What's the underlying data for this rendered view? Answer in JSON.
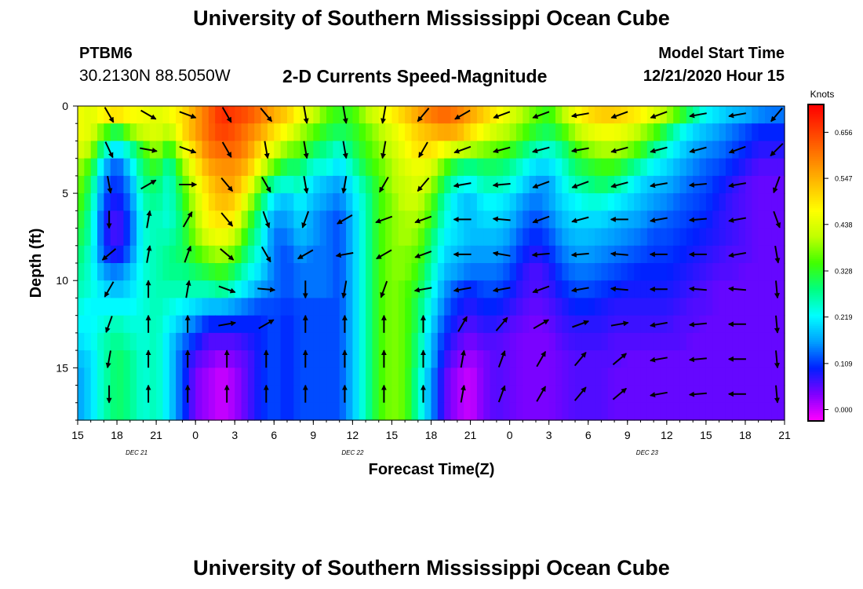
{
  "header": {
    "title_top": "University of Southern Mississippi Ocean Cube",
    "title_bottom": "University of Southern Mississippi Ocean Cube",
    "station_id": "PTBM6",
    "station_coords": "30.2130N 88.5050W",
    "model_label": "Model Start Time",
    "model_time": "12/21/2020 Hour 15"
  },
  "chart_data": {
    "type": "heatmap",
    "title": "2-D Currents Speed-Magnitude",
    "xlabel": "Forecast Time(Z)",
    "ylabel": "Depth (ft)",
    "x_range_hours": [
      0,
      54
    ],
    "y_range_ft": [
      0,
      18
    ],
    "x_ticks": [
      "15",
      "18",
      "21",
      "0",
      "3",
      "6",
      "9",
      "12",
      "15",
      "18",
      "21",
      "0",
      "3",
      "6",
      "9",
      "12",
      "15",
      "18",
      "21"
    ],
    "y_ticks": [
      "0",
      "5",
      "10",
      "15"
    ],
    "y_tick_values": [
      0,
      5,
      10,
      15
    ],
    "date_labels": [
      {
        "text": "DEC 21",
        "hour": 4.5
      },
      {
        "text": "DEC 22",
        "hour": 21
      },
      {
        "text": "DEC 23",
        "hour": 43.5
      }
    ],
    "colorbar": {
      "title": "Knots",
      "ticks": [
        "0.656",
        "0.547",
        "0.438",
        "0.328",
        "0.219",
        "0.109",
        "0.000"
      ],
      "tick_values": [
        0.656,
        0.547,
        0.438,
        0.328,
        0.219,
        0.109,
        0.0
      ],
      "range": [
        -0.025,
        0.72
      ],
      "colors": [
        "#ff00ff",
        "#8000ff",
        "#0020ff",
        "#00a0ff",
        "#00ffff",
        "#00ff80",
        "#40ff00",
        "#c0ff00",
        "#ffff00",
        "#ffc000",
        "#ff8000",
        "#ff4000",
        "#ff0000"
      ]
    },
    "depth_rows": [
      0.5,
      1.5,
      2.5,
      3.5,
      4.5,
      5.5,
      6.5,
      7.5,
      8.5,
      9.5,
      10.5,
      11.5,
      12.5,
      13.5,
      14.5,
      15.5,
      16.5,
      17.5
    ],
    "anchor_hours": [
      0,
      1,
      2,
      3,
      4,
      5,
      6,
      7,
      8,
      9,
      10,
      11,
      12,
      13,
      14,
      15,
      16,
      17,
      18,
      19,
      20,
      21,
      22,
      23,
      24,
      25,
      26,
      27,
      28,
      29,
      30,
      31,
      32,
      33,
      34,
      35,
      36,
      37,
      38,
      39,
      40,
      41,
      42,
      43,
      44,
      45,
      46,
      47,
      48,
      49,
      50,
      51,
      52,
      53,
      54
    ],
    "speed": [
      [
        0.46,
        0.44,
        0.48,
        0.5,
        0.47,
        0.46,
        0.44,
        0.46,
        0.5,
        0.56,
        0.62,
        0.68,
        0.66,
        0.64,
        0.6,
        0.55,
        0.52,
        0.46,
        0.42,
        0.36,
        0.33,
        0.34,
        0.4,
        0.44,
        0.48,
        0.52,
        0.56,
        0.6,
        0.62,
        0.6,
        0.56,
        0.52,
        0.48,
        0.44,
        0.4,
        0.36,
        0.33,
        0.4,
        0.46,
        0.5,
        0.52,
        0.52,
        0.5,
        0.48,
        0.44,
        0.4,
        0.34,
        0.28,
        0.22,
        0.2,
        0.18,
        0.17,
        0.15,
        0.14,
        0.14
      ],
      [
        0.46,
        0.44,
        0.36,
        0.3,
        0.38,
        0.42,
        0.44,
        0.4,
        0.5,
        0.56,
        0.62,
        0.66,
        0.64,
        0.6,
        0.56,
        0.5,
        0.46,
        0.4,
        0.36,
        0.32,
        0.3,
        0.32,
        0.36,
        0.4,
        0.44,
        0.48,
        0.52,
        0.54,
        0.56,
        0.55,
        0.5,
        0.46,
        0.42,
        0.4,
        0.36,
        0.32,
        0.3,
        0.34,
        0.4,
        0.44,
        0.46,
        0.46,
        0.44,
        0.4,
        0.36,
        0.3,
        0.24,
        0.2,
        0.18,
        0.16,
        0.14,
        0.12,
        0.1,
        0.1,
        0.1
      ],
      [
        0.44,
        0.4,
        0.26,
        0.2,
        0.26,
        0.34,
        0.4,
        0.32,
        0.44,
        0.52,
        0.6,
        0.62,
        0.62,
        0.58,
        0.5,
        0.44,
        0.38,
        0.36,
        0.3,
        0.28,
        0.24,
        0.3,
        0.34,
        0.38,
        0.42,
        0.46,
        0.5,
        0.5,
        0.46,
        0.42,
        0.4,
        0.38,
        0.36,
        0.34,
        0.3,
        0.26,
        0.24,
        0.28,
        0.34,
        0.38,
        0.4,
        0.4,
        0.38,
        0.34,
        0.28,
        0.24,
        0.2,
        0.17,
        0.15,
        0.14,
        0.12,
        0.1,
        0.08,
        0.08,
        0.08
      ],
      [
        0.4,
        0.34,
        0.18,
        0.12,
        0.2,
        0.3,
        0.34,
        0.26,
        0.38,
        0.48,
        0.56,
        0.58,
        0.58,
        0.54,
        0.44,
        0.36,
        0.3,
        0.3,
        0.24,
        0.24,
        0.2,
        0.26,
        0.32,
        0.36,
        0.4,
        0.44,
        0.46,
        0.44,
        0.36,
        0.3,
        0.28,
        0.3,
        0.3,
        0.28,
        0.24,
        0.2,
        0.2,
        0.24,
        0.3,
        0.32,
        0.34,
        0.34,
        0.3,
        0.26,
        0.22,
        0.2,
        0.17,
        0.15,
        0.13,
        0.12,
        0.1,
        0.08,
        0.06,
        0.06,
        0.06
      ],
      [
        0.38,
        0.3,
        0.14,
        0.1,
        0.16,
        0.28,
        0.3,
        0.24,
        0.34,
        0.44,
        0.52,
        0.56,
        0.56,
        0.48,
        0.36,
        0.26,
        0.24,
        0.26,
        0.2,
        0.18,
        0.16,
        0.22,
        0.28,
        0.34,
        0.4,
        0.42,
        0.44,
        0.4,
        0.3,
        0.24,
        0.22,
        0.26,
        0.26,
        0.24,
        0.2,
        0.16,
        0.16,
        0.22,
        0.26,
        0.28,
        0.3,
        0.28,
        0.24,
        0.2,
        0.18,
        0.17,
        0.15,
        0.13,
        0.12,
        0.1,
        0.08,
        0.06,
        0.05,
        0.05,
        0.05
      ],
      [
        0.36,
        0.28,
        0.12,
        0.08,
        0.14,
        0.26,
        0.28,
        0.24,
        0.32,
        0.42,
        0.5,
        0.54,
        0.52,
        0.42,
        0.3,
        0.2,
        0.18,
        0.22,
        0.18,
        0.16,
        0.14,
        0.2,
        0.26,
        0.34,
        0.38,
        0.42,
        0.42,
        0.36,
        0.26,
        0.2,
        0.18,
        0.22,
        0.22,
        0.2,
        0.16,
        0.14,
        0.16,
        0.2,
        0.22,
        0.24,
        0.24,
        0.22,
        0.2,
        0.18,
        0.16,
        0.15,
        0.13,
        0.12,
        0.11,
        0.09,
        0.07,
        0.06,
        0.05,
        0.05,
        0.05
      ],
      [
        0.34,
        0.26,
        0.1,
        0.06,
        0.12,
        0.24,
        0.26,
        0.24,
        0.3,
        0.4,
        0.48,
        0.5,
        0.48,
        0.36,
        0.26,
        0.16,
        0.16,
        0.2,
        0.16,
        0.14,
        0.12,
        0.18,
        0.26,
        0.34,
        0.38,
        0.4,
        0.4,
        0.34,
        0.24,
        0.2,
        0.18,
        0.2,
        0.2,
        0.18,
        0.14,
        0.12,
        0.14,
        0.18,
        0.2,
        0.2,
        0.2,
        0.18,
        0.17,
        0.16,
        0.14,
        0.13,
        0.12,
        0.11,
        0.1,
        0.08,
        0.07,
        0.06,
        0.05,
        0.05,
        0.05
      ],
      [
        0.32,
        0.26,
        0.1,
        0.06,
        0.12,
        0.24,
        0.26,
        0.26,
        0.3,
        0.38,
        0.44,
        0.46,
        0.42,
        0.32,
        0.24,
        0.14,
        0.14,
        0.18,
        0.16,
        0.14,
        0.12,
        0.18,
        0.26,
        0.34,
        0.38,
        0.4,
        0.38,
        0.3,
        0.22,
        0.2,
        0.18,
        0.18,
        0.18,
        0.16,
        0.12,
        0.1,
        0.12,
        0.16,
        0.18,
        0.18,
        0.17,
        0.16,
        0.15,
        0.14,
        0.12,
        0.12,
        0.11,
        0.1,
        0.09,
        0.08,
        0.07,
        0.06,
        0.05,
        0.05,
        0.05
      ],
      [
        0.3,
        0.24,
        0.12,
        0.08,
        0.14,
        0.24,
        0.26,
        0.28,
        0.3,
        0.34,
        0.38,
        0.4,
        0.36,
        0.28,
        0.22,
        0.14,
        0.12,
        0.16,
        0.14,
        0.14,
        0.12,
        0.18,
        0.26,
        0.34,
        0.38,
        0.38,
        0.36,
        0.28,
        0.2,
        0.18,
        0.16,
        0.16,
        0.16,
        0.14,
        0.1,
        0.08,
        0.1,
        0.14,
        0.16,
        0.16,
        0.15,
        0.14,
        0.13,
        0.12,
        0.11,
        0.11,
        0.1,
        0.09,
        0.08,
        0.07,
        0.06,
        0.06,
        0.05,
        0.05,
        0.05
      ],
      [
        0.28,
        0.24,
        0.16,
        0.14,
        0.18,
        0.24,
        0.26,
        0.28,
        0.28,
        0.3,
        0.32,
        0.34,
        0.3,
        0.24,
        0.2,
        0.14,
        0.12,
        0.14,
        0.14,
        0.14,
        0.12,
        0.18,
        0.26,
        0.34,
        0.38,
        0.38,
        0.34,
        0.26,
        0.18,
        0.16,
        0.14,
        0.14,
        0.14,
        0.12,
        0.08,
        0.06,
        0.08,
        0.12,
        0.14,
        0.14,
        0.13,
        0.12,
        0.11,
        0.1,
        0.1,
        0.1,
        0.09,
        0.08,
        0.07,
        0.06,
        0.06,
        0.05,
        0.05,
        0.05,
        0.05
      ],
      [
        0.26,
        0.24,
        0.2,
        0.18,
        0.2,
        0.24,
        0.26,
        0.26,
        0.26,
        0.26,
        0.26,
        0.28,
        0.24,
        0.2,
        0.16,
        0.14,
        0.12,
        0.14,
        0.14,
        0.14,
        0.12,
        0.18,
        0.26,
        0.34,
        0.38,
        0.36,
        0.32,
        0.24,
        0.16,
        0.12,
        0.1,
        0.12,
        0.12,
        0.1,
        0.07,
        0.06,
        0.07,
        0.1,
        0.12,
        0.12,
        0.11,
        0.1,
        0.09,
        0.09,
        0.09,
        0.09,
        0.08,
        0.07,
        0.06,
        0.05,
        0.05,
        0.05,
        0.05,
        0.05,
        0.05
      ],
      [
        0.24,
        0.22,
        0.22,
        0.22,
        0.22,
        0.24,
        0.26,
        0.24,
        0.22,
        0.2,
        0.18,
        0.18,
        0.16,
        0.14,
        0.12,
        0.12,
        0.11,
        0.12,
        0.12,
        0.12,
        0.12,
        0.18,
        0.26,
        0.34,
        0.38,
        0.36,
        0.3,
        0.22,
        0.14,
        0.1,
        0.08,
        0.1,
        0.1,
        0.08,
        0.06,
        0.05,
        0.06,
        0.08,
        0.1,
        0.1,
        0.09,
        0.08,
        0.08,
        0.08,
        0.08,
        0.08,
        0.07,
        0.06,
        0.06,
        0.05,
        0.05,
        0.05,
        0.05,
        0.05,
        0.05
      ],
      [
        0.22,
        0.22,
        0.24,
        0.26,
        0.24,
        0.24,
        0.26,
        0.22,
        0.18,
        0.14,
        0.1,
        0.1,
        0.1,
        0.1,
        0.1,
        0.12,
        0.1,
        0.12,
        0.12,
        0.12,
        0.12,
        0.18,
        0.26,
        0.34,
        0.38,
        0.36,
        0.3,
        0.2,
        0.12,
        0.08,
        0.06,
        0.08,
        0.08,
        0.06,
        0.05,
        0.04,
        0.05,
        0.07,
        0.08,
        0.08,
        0.08,
        0.07,
        0.07,
        0.07,
        0.07,
        0.07,
        0.06,
        0.06,
        0.05,
        0.05,
        0.05,
        0.05,
        0.05,
        0.05,
        0.05
      ],
      [
        0.2,
        0.22,
        0.26,
        0.28,
        0.26,
        0.24,
        0.26,
        0.2,
        0.14,
        0.1,
        0.06,
        0.06,
        0.06,
        0.08,
        0.1,
        0.12,
        0.1,
        0.12,
        0.12,
        0.12,
        0.12,
        0.18,
        0.26,
        0.34,
        0.38,
        0.36,
        0.28,
        0.18,
        0.1,
        0.06,
        0.04,
        0.06,
        0.06,
        0.05,
        0.04,
        0.04,
        0.04,
        0.06,
        0.07,
        0.07,
        0.07,
        0.06,
        0.06,
        0.06,
        0.06,
        0.06,
        0.06,
        0.05,
        0.05,
        0.05,
        0.05,
        0.05,
        0.05,
        0.05,
        0.05
      ],
      [
        0.18,
        0.2,
        0.26,
        0.3,
        0.28,
        0.24,
        0.26,
        0.2,
        0.12,
        0.06,
        0.04,
        0.02,
        0.04,
        0.06,
        0.1,
        0.12,
        0.1,
        0.12,
        0.12,
        0.12,
        0.12,
        0.18,
        0.26,
        0.34,
        0.38,
        0.36,
        0.28,
        0.18,
        0.08,
        0.04,
        0.02,
        0.04,
        0.06,
        0.05,
        0.04,
        0.04,
        0.04,
        0.05,
        0.06,
        0.06,
        0.06,
        0.06,
        0.05,
        0.05,
        0.05,
        0.05,
        0.05,
        0.05,
        0.05,
        0.05,
        0.05,
        0.05,
        0.05,
        0.05,
        0.05
      ],
      [
        0.16,
        0.2,
        0.26,
        0.3,
        0.28,
        0.24,
        0.26,
        0.2,
        0.12,
        0.04,
        0.02,
        0.0,
        0.02,
        0.06,
        0.1,
        0.12,
        0.1,
        0.12,
        0.12,
        0.12,
        0.12,
        0.18,
        0.26,
        0.34,
        0.38,
        0.36,
        0.26,
        0.16,
        0.06,
        0.02,
        0.0,
        0.04,
        0.06,
        0.05,
        0.04,
        0.04,
        0.04,
        0.05,
        0.06,
        0.06,
        0.06,
        0.05,
        0.05,
        0.05,
        0.05,
        0.05,
        0.05,
        0.05,
        0.05,
        0.05,
        0.05,
        0.05,
        0.05,
        0.05,
        0.05
      ],
      [
        0.16,
        0.2,
        0.26,
        0.3,
        0.28,
        0.24,
        0.26,
        0.2,
        0.12,
        0.04,
        0.02,
        0.0,
        0.02,
        0.06,
        0.1,
        0.12,
        0.1,
        0.12,
        0.12,
        0.12,
        0.12,
        0.18,
        0.26,
        0.34,
        0.38,
        0.36,
        0.26,
        0.16,
        0.06,
        0.02,
        0.0,
        0.04,
        0.06,
        0.05,
        0.04,
        0.04,
        0.04,
        0.05,
        0.06,
        0.06,
        0.06,
        0.05,
        0.05,
        0.05,
        0.05,
        0.05,
        0.05,
        0.05,
        0.05,
        0.05,
        0.05,
        0.05,
        0.05,
        0.05,
        0.05
      ],
      [
        0.16,
        0.2,
        0.26,
        0.3,
        0.28,
        0.24,
        0.26,
        0.2,
        0.12,
        0.04,
        0.02,
        0.0,
        0.02,
        0.06,
        0.1,
        0.12,
        0.1,
        0.12,
        0.12,
        0.12,
        0.12,
        0.18,
        0.26,
        0.34,
        0.38,
        0.36,
        0.26,
        0.16,
        0.06,
        0.02,
        0.0,
        0.04,
        0.06,
        0.05,
        0.04,
        0.04,
        0.04,
        0.05,
        0.06,
        0.06,
        0.06,
        0.05,
        0.05,
        0.05,
        0.05,
        0.05,
        0.05,
        0.05,
        0.05,
        0.05,
        0.05,
        0.05,
        0.05,
        0.05,
        0.05
      ]
    ],
    "vectors": {
      "hours": [
        3,
        6,
        9,
        12,
        15,
        18,
        21,
        24,
        27,
        30,
        33,
        36,
        39,
        42,
        45,
        48,
        51,
        54
      ],
      "depths_ft": [
        0.5,
        2.5,
        4.5,
        6.5,
        8.5,
        10.5,
        12.5,
        14.5,
        16.5
      ],
      "direction_deg": [
        [
          150,
          120,
          110,
          150,
          140,
          170,
          170,
          190,
          220,
          240,
          250,
          250,
          260,
          250,
          250,
          260,
          260,
          220
        ],
        [
          155,
          100,
          110,
          150,
          170,
          170,
          170,
          190,
          210,
          250,
          255,
          255,
          260,
          255,
          255,
          255,
          250,
          225
        ],
        [
          170,
          60,
          90,
          140,
          150,
          170,
          190,
          210,
          220,
          260,
          265,
          250,
          250,
          255,
          260,
          265,
          260,
          200
        ],
        [
          180,
          10,
          30,
          140,
          160,
          200,
          240,
          250,
          250,
          270,
          275,
          250,
          255,
          270,
          260,
          265,
          260,
          160
        ],
        [
          230,
          10,
          20,
          130,
          150,
          240,
          260,
          240,
          250,
          270,
          280,
          265,
          265,
          275,
          270,
          270,
          260,
          170
        ],
        [
          210,
          0,
          10,
          110,
          95,
          180,
          190,
          200,
          260,
          260,
          260,
          250,
          260,
          275,
          270,
          275,
          275,
          175
        ],
        [
          200,
          0,
          0,
          80,
          60,
          0,
          0,
          0,
          0,
          30,
          40,
          60,
          70,
          80,
          260,
          265,
          270,
          175
        ],
        [
          190,
          0,
          0,
          0,
          0,
          0,
          0,
          0,
          0,
          10,
          20,
          30,
          40,
          50,
          260,
          265,
          270,
          175
        ],
        [
          180,
          0,
          0,
          0,
          0,
          0,
          0,
          0,
          0,
          10,
          20,
          30,
          40,
          50,
          260,
          265,
          270,
          175
        ]
      ]
    }
  }
}
